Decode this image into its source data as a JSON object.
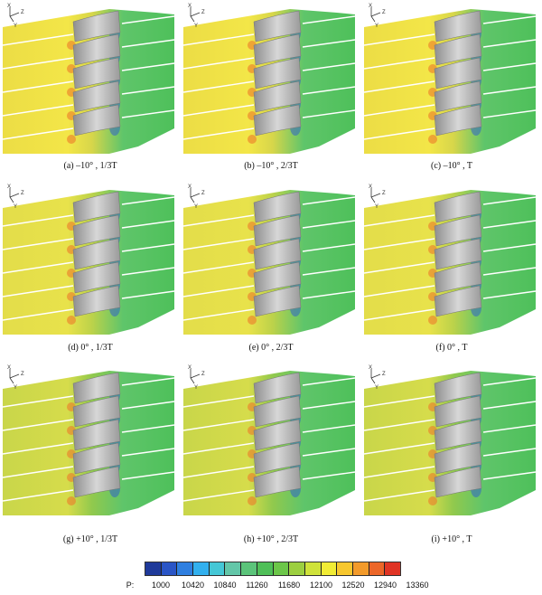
{
  "panels": [
    {
      "caption": "(a) –10° , 1/3T",
      "field": "yellow"
    },
    {
      "caption": "(b) –10° , 2/3T",
      "field": "yellow"
    },
    {
      "caption": "(c) –10° , T",
      "field": "yellow"
    },
    {
      "caption": "(d) 0° , 1/3T",
      "field": "mid"
    },
    {
      "caption": "(e) 0° , 2/3T",
      "field": "mid"
    },
    {
      "caption": "(f) 0° , T",
      "field": "mid"
    },
    {
      "caption": "(g) +10° , 1/3T",
      "field": "green"
    },
    {
      "caption": "(h) +10° , 2/3T",
      "field": "green"
    },
    {
      "caption": "(i) +10° , T",
      "field": "green"
    }
  ],
  "axes": {
    "x": "X",
    "y": "Y",
    "z": "Z"
  },
  "colorbar": {
    "prefix": "P:",
    "ticks": [
      "1000",
      "10420",
      "10840",
      "11260",
      "11680",
      "12100",
      "12520",
      "12940",
      "13360"
    ],
    "colors": [
      "#1f3a9a",
      "#2a55c6",
      "#2f7fe0",
      "#32b0ee",
      "#45c7d6",
      "#63c6a8",
      "#5bc47a",
      "#4fbf58",
      "#6cc649",
      "#9ccf40",
      "#cfe23a",
      "#f1ec35",
      "#f7c72e",
      "#f29a2a",
      "#ec6628",
      "#e03424"
    ]
  }
}
